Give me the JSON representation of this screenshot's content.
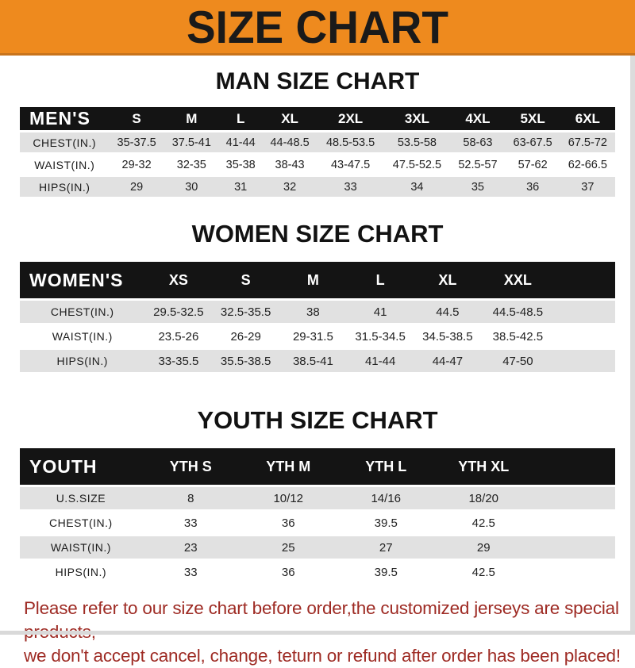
{
  "banner": {
    "title": "SIZE CHART"
  },
  "note": {
    "line1": "Please refer to our size chart before order,the customized jerseys are special products,",
    "line2": "we don't accept cancel, change, teturn or refund after order has been placed!"
  },
  "colors": {
    "banner_orange": "#EE8A1E",
    "header_bar_black": "#141414",
    "row_gray": "#E1E1E1",
    "note_red": "#9E2B24"
  },
  "chart_data": [
    {
      "type": "table",
      "title": "MAN SIZE CHART",
      "columns": [
        "MEN'S",
        "S",
        "M",
        "L",
        "XL",
        "2XL",
        "3XL",
        "4XL",
        "5XL",
        "6XL"
      ],
      "rows": [
        [
          "CHEST(IN.)",
          "35-37.5",
          "37.5-41",
          "41-44",
          "44-48.5",
          "48.5-53.5",
          "53.5-58",
          "58-63",
          "63-67.5",
          "67.5-72"
        ],
        [
          "WAIST(IN.)",
          "29-32",
          "32-35",
          "35-38",
          "38-43",
          "43-47.5",
          "47.5-52.5",
          "52.5-57",
          "57-62",
          "62-66.5"
        ],
        [
          "HIPS(IN.)",
          "29",
          "30",
          "31",
          "32",
          "33",
          "34",
          "35",
          "36",
          "37"
        ]
      ]
    },
    {
      "type": "table",
      "title": "WOMEN SIZE CHART",
      "columns": [
        "WOMEN'S",
        "XS",
        "S",
        "M",
        "L",
        "XL",
        "XXL"
      ],
      "rows": [
        [
          "CHEST(IN.)",
          "29.5-32.5",
          "32.5-35.5",
          "38",
          "41",
          "44.5",
          "44.5-48.5"
        ],
        [
          "WAIST(IN.)",
          "23.5-26",
          "26-29",
          "29-31.5",
          "31.5-34.5",
          "34.5-38.5",
          "38.5-42.5"
        ],
        [
          "HIPS(IN.)",
          "33-35.5",
          "35.5-38.5",
          "38.5-41",
          "41-44",
          "44-47",
          "47-50"
        ]
      ]
    },
    {
      "type": "table",
      "title": "YOUTH SIZE CHART",
      "columns": [
        "YOUTH",
        "YTH S",
        "YTH M",
        "YTH L",
        "YTH XL"
      ],
      "rows": [
        [
          "U.S.SIZE",
          "8",
          "10/12",
          "14/16",
          "18/20"
        ],
        [
          "CHEST(IN.)",
          "33",
          "36",
          "39.5",
          "42.5"
        ],
        [
          "WAIST(IN.)",
          "23",
          "25",
          "27",
          "29"
        ],
        [
          "HIPS(IN.)",
          "33",
          "36",
          "39.5",
          "42.5"
        ]
      ]
    }
  ]
}
